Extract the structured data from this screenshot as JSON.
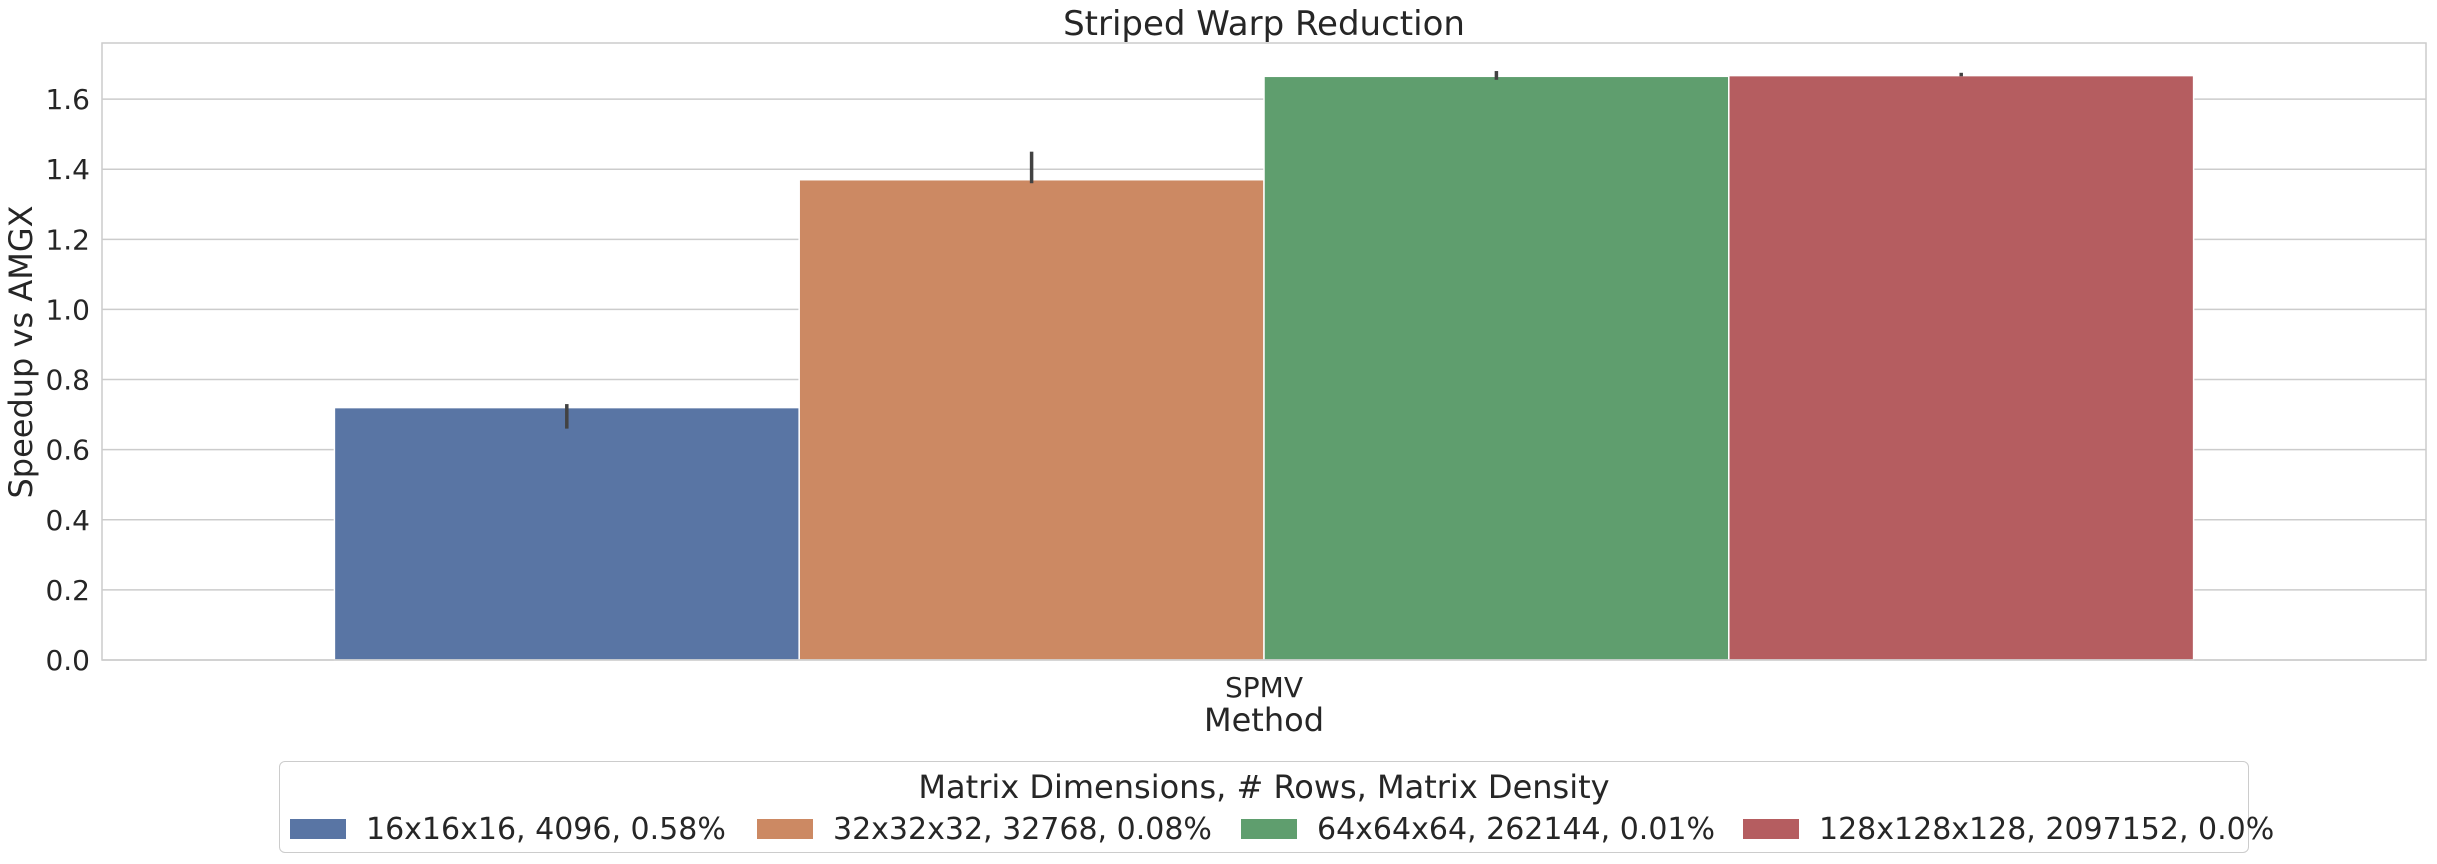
{
  "chart_data": {
    "type": "bar",
    "title": "Striped Warp Reduction",
    "xlabel": "Method",
    "ylabel": "Speedup vs AMGX",
    "categories": [
      "SPMV"
    ],
    "ylim": [
      0,
      1.76
    ],
    "yticks": [
      "0.0",
      "0.2",
      "0.4",
      "0.6",
      "0.8",
      "1.0",
      "1.2",
      "1.4",
      "1.6"
    ],
    "grid": true,
    "legend_title": "Matrix Dimensions, # Rows, Matrix Density",
    "legend_position": "bottom-center",
    "series": [
      {
        "name": "16x16x16, 4096, 0.58%",
        "values": [
          0.72
        ],
        "error": [
          [
            0.66,
            0.73
          ]
        ],
        "color": "#5975a4"
      },
      {
        "name": "32x32x32, 32768, 0.08%",
        "values": [
          1.37
        ],
        "error": [
          [
            1.36,
            1.45
          ]
        ],
        "color": "#cc8963"
      },
      {
        "name": "64x64x64, 262144, 0.01%",
        "values": [
          1.665
        ],
        "error": [
          [
            1.655,
            1.68
          ]
        ],
        "color": "#5f9e6e"
      },
      {
        "name": "128x128x128, 2097152, 0.0%",
        "values": [
          1.667
        ],
        "error": [
          [
            1.665,
            1.675
          ]
        ],
        "color": "#b55d60"
      }
    ]
  }
}
